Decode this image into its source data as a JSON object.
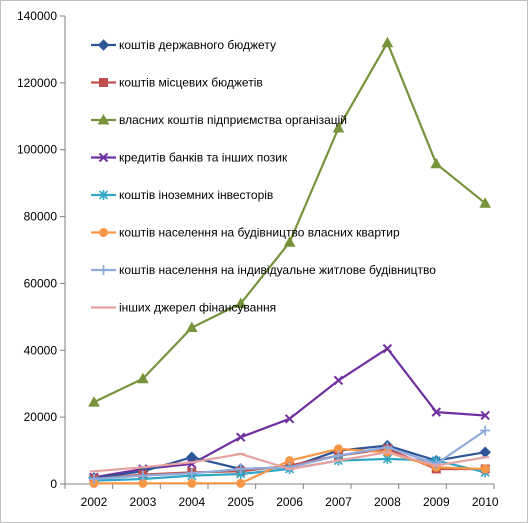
{
  "chart_data": {
    "type": "line",
    "title": "",
    "xlabel": "",
    "ylabel": "",
    "x": [
      "2002",
      "2003",
      "2004",
      "2005",
      "2006",
      "2007",
      "2008",
      "2009",
      "2010"
    ],
    "ylim": [
      0,
      140000
    ],
    "yticks": [
      "0",
      "20000",
      "40000",
      "60000",
      "80000",
      "100000",
      "120000",
      "140000"
    ],
    "grid": false,
    "legend_position": "inside-top-left",
    "series": [
      {
        "name": "коштів державного бюджету",
        "color": "#2f5597",
        "marker": "diamond",
        "values": [
          1800,
          3800,
          8000,
          4500,
          5000,
          10000,
          11500,
          7000,
          9500
        ]
      },
      {
        "name": "коштів місцевих бюджетів",
        "color": "#c0504d",
        "marker": "square",
        "values": [
          1500,
          2800,
          3500,
          3800,
          5500,
          8500,
          10500,
          4500,
          4500
        ]
      },
      {
        "name": "власних коштів підприємства організацій",
        "color": "#77933c",
        "marker": "triangle",
        "values": [
          24500,
          31500,
          46800,
          54000,
          72300,
          106500,
          132000,
          95800,
          84000
        ]
      },
      {
        "name": "кредитів банків та інших позик",
        "color": "#7030a0",
        "marker": "x",
        "values": [
          2000,
          4500,
          6000,
          14000,
          19500,
          31000,
          40500,
          21500,
          20500
        ]
      },
      {
        "name": "коштів іноземних інвесторів",
        "color": "#31a6c5",
        "marker": "star",
        "values": [
          1000,
          1500,
          2500,
          3000,
          4500,
          7000,
          7500,
          7000,
          3500
        ]
      },
      {
        "name": "коштів населення на будівництво власних квартир",
        "color": "#f79646",
        "marker": "circle",
        "values": [
          200,
          200,
          200,
          200,
          7000,
          10500,
          9500,
          5000,
          4500
        ]
      },
      {
        "name": "коштів населення на індивідуальне житлове будівництво",
        "color": "#8faadc",
        "marker": "plus",
        "values": [
          1500,
          2500,
          3200,
          4500,
          5000,
          8500,
          11000,
          6000,
          16000
        ]
      },
      {
        "name": "інших джерел фінансування",
        "color": "#e6a1a1",
        "marker": "dash",
        "values": [
          3800,
          5000,
          6500,
          9000,
          4500,
          7000,
          9500,
          5500,
          8000
        ]
      }
    ]
  }
}
